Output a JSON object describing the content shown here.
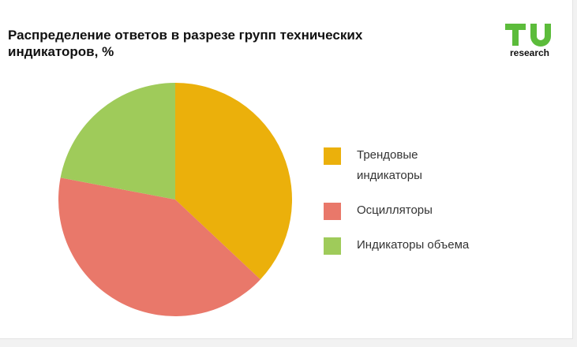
{
  "chart_data": {
    "type": "pie",
    "title": "Распределение ответов в разрезе групп технических индикаторов, %",
    "categories": [
      "Трендовые индикаторы",
      "Осцилляторы",
      "Индикаторы объема"
    ],
    "values": [
      37,
      41,
      22
    ],
    "colors": [
      "#ebb00b",
      "#e9786a",
      "#9fcb5a"
    ],
    "start_angle_deg": 0,
    "direction": "clockwise",
    "legend": "right"
  },
  "logo": {
    "mark": "TU",
    "subtitle": "research",
    "color": "#5cbc3b",
    "icon": "tu-research-logo"
  }
}
